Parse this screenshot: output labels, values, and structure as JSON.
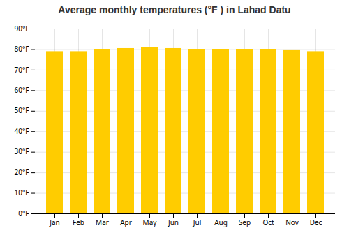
{
  "chart_data": {
    "type": "bar",
    "title": "Average monthly temperatures (°F ) in Lahad Datu",
    "categories": [
      "Jan",
      "Feb",
      "Mar",
      "Apr",
      "May",
      "Jun",
      "Jul",
      "Aug",
      "Sep",
      "Oct",
      "Nov",
      "Dec"
    ],
    "values": [
      79,
      79,
      80,
      80.5,
      81,
      80.5,
      80,
      80,
      80,
      80,
      79.5,
      79
    ],
    "color": "#FFCC00",
    "ylim": [
      0,
      90
    ],
    "yticks": [
      {
        "value": 0,
        "label": "0°F"
      },
      {
        "value": 10,
        "label": "10°F"
      },
      {
        "value": 20,
        "label": "20°F"
      },
      {
        "value": 30,
        "label": "30°F"
      },
      {
        "value": 40,
        "label": "40°F"
      },
      {
        "value": 50,
        "label": "50°F"
      },
      {
        "value": 60,
        "label": "60°F"
      },
      {
        "value": 70,
        "label": "70°F"
      },
      {
        "value": 80,
        "label": "80°F"
      },
      {
        "value": 90,
        "label": "90°F"
      }
    ],
    "grid": true
  }
}
